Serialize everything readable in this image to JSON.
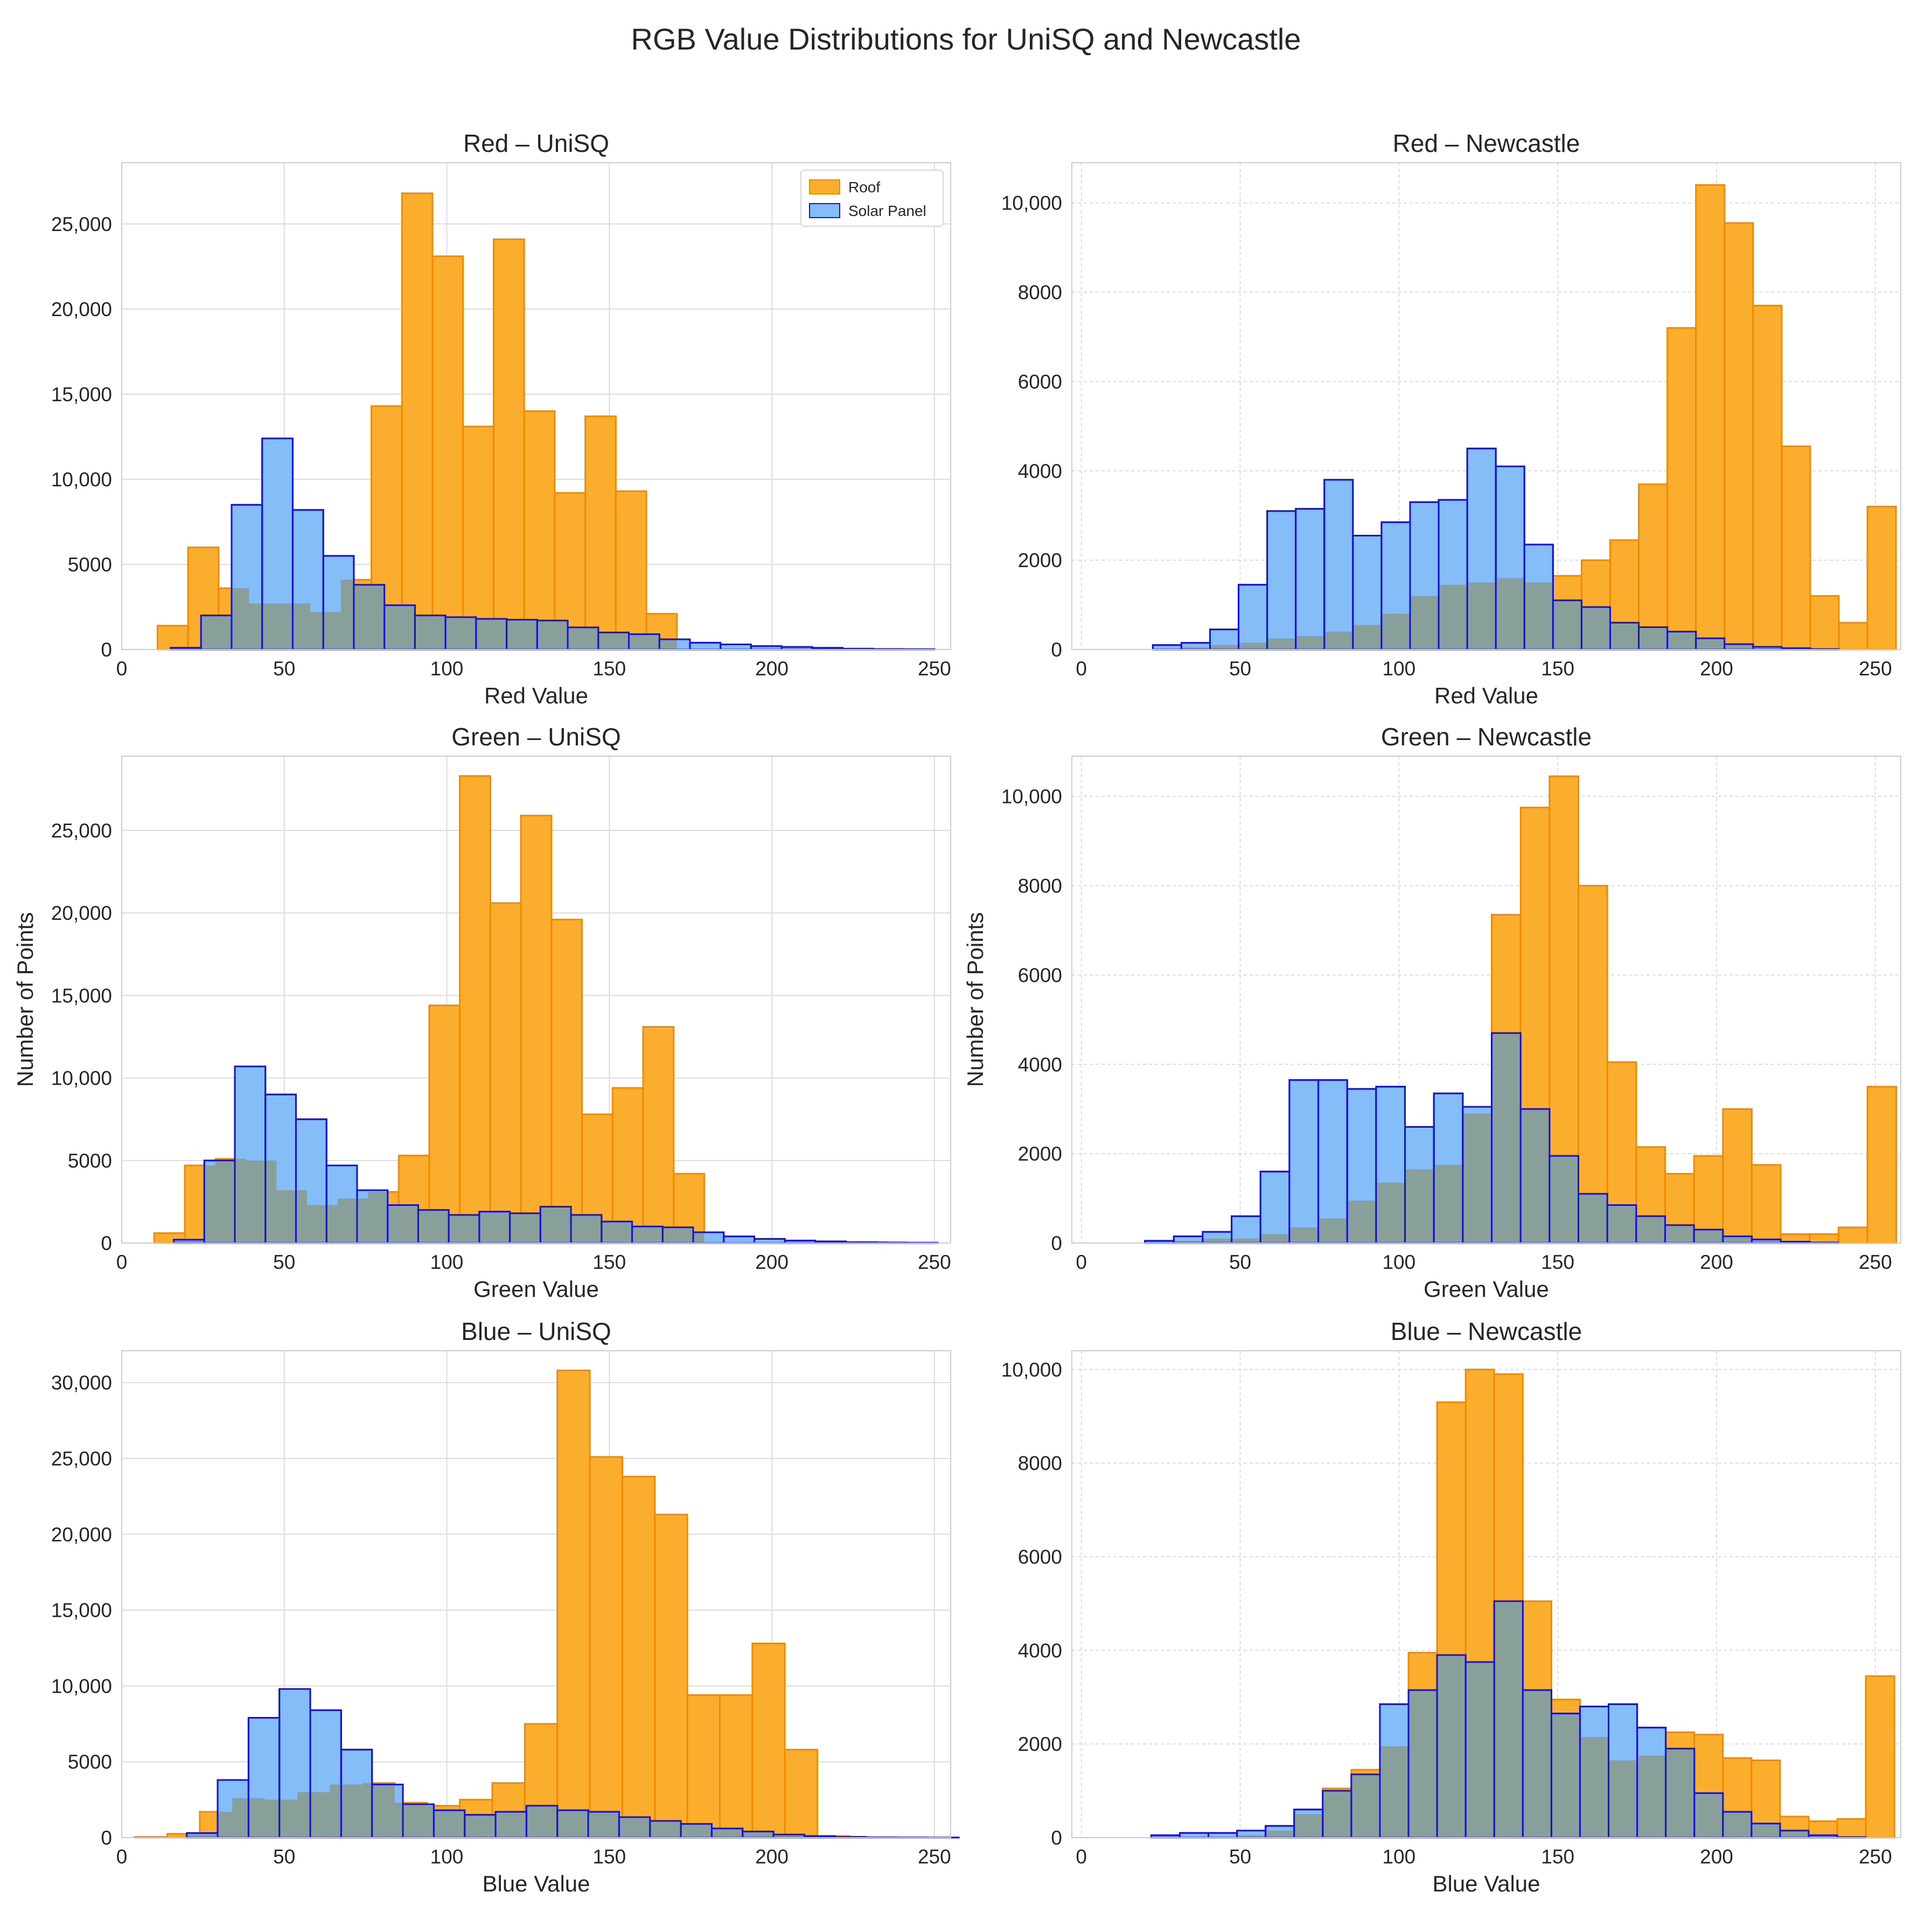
{
  "figure_title": "RGB Value Distributions for UniSQ and Newcastle",
  "colors": {
    "roof_fill": "#fbad2e",
    "roof_edge": "#f28a00",
    "solar_fill": "#85bdf9",
    "solar_edge": "#1414d6",
    "overlap_fill": "#899f99",
    "grid": "#dcdcdc",
    "frame": "#cccccc"
  },
  "chart_data": [
    {
      "type": "bar",
      "title": "Red – UniSQ",
      "xlabel": "Red Value",
      "ylabel": "",
      "xlim": [
        0,
        255
      ],
      "ylim": [
        0,
        28600
      ],
      "xticks": [
        0,
        50,
        100,
        150,
        200,
        250
      ],
      "yticks": [
        0,
        5000,
        10000,
        15000,
        20000,
        25000
      ],
      "ytick_labels": [
        "0",
        "5000",
        "10,000",
        "15,000",
        "20,000",
        "25,000"
      ],
      "grid": "solid",
      "legend": "top-right",
      "series": [
        {
          "name": "Roof",
          "bin_start": 11,
          "bin_width": 9.4,
          "values": [
            1400,
            6000,
            3600,
            2700,
            2700,
            2200,
            4100,
            14300,
            26800,
            23100,
            13100,
            24100,
            14000,
            9200,
            13700,
            9300,
            2100,
            0,
            0,
            0,
            0,
            0,
            0,
            0,
            0
          ]
        },
        {
          "name": "Solar Panel",
          "bin_start": 15,
          "bin_width": 9.4,
          "values": [
            100,
            2000,
            8500,
            12400,
            8200,
            5500,
            3800,
            2600,
            2000,
            1900,
            1800,
            1750,
            1700,
            1300,
            1000,
            900,
            600,
            400,
            300,
            200,
            150,
            100,
            50,
            30,
            20
          ]
        }
      ]
    },
    {
      "type": "bar",
      "title": "Red – Newcastle",
      "xlabel": "Red Value",
      "ylabel": "",
      "xlim": [
        -3,
        258
      ],
      "ylim": [
        0,
        10900
      ],
      "xticks": [
        0,
        50,
        100,
        150,
        200,
        250
      ],
      "yticks": [
        0,
        2000,
        4000,
        6000,
        8000,
        10000
      ],
      "ytick_labels": [
        "0",
        "2000",
        "4000",
        "6000",
        "8000",
        "10,000"
      ],
      "grid": "dashed",
      "legend": "",
      "series": [
        {
          "name": "Roof",
          "bin_start": 22.5,
          "bin_width": 9.0,
          "values": [
            0,
            50,
            100,
            150,
            250,
            300,
            400,
            550,
            800,
            1200,
            1450,
            1500,
            1600,
            1500,
            1650,
            2000,
            2450,
            3700,
            7200,
            10400,
            9550,
            7700,
            4550,
            1200,
            600,
            3200
          ]
        },
        {
          "name": "Solar Panel",
          "bin_start": 22.5,
          "bin_width": 9.0,
          "values": [
            100,
            150,
            450,
            1450,
            3100,
            3150,
            3800,
            2550,
            2850,
            3300,
            3350,
            4500,
            4100,
            2350,
            1100,
            950,
            600,
            500,
            400,
            250,
            120,
            60,
            30,
            10,
            0,
            0
          ]
        }
      ]
    },
    {
      "type": "bar",
      "title": "Green – UniSQ",
      "xlabel": "Green Value",
      "ylabel": "Number of Points",
      "xlim": [
        0,
        255
      ],
      "ylim": [
        0,
        29500
      ],
      "xticks": [
        0,
        50,
        100,
        150,
        200,
        250
      ],
      "yticks": [
        0,
        5000,
        10000,
        15000,
        20000,
        25000
      ],
      "ytick_labels": [
        "0",
        "5000",
        "10,000",
        "15,000",
        "20,000",
        "25,000"
      ],
      "grid": "solid",
      "legend": "",
      "series": [
        {
          "name": "Roof",
          "bin_start": 10,
          "bin_width": 9.4,
          "values": [
            600,
            4700,
            5100,
            5000,
            3200,
            2300,
            2700,
            3100,
            5300,
            14400,
            28300,
            20600,
            25900,
            19600,
            7800,
            9400,
            13100,
            4200,
            0,
            0,
            0,
            0,
            0,
            50,
            0
          ]
        },
        {
          "name": "Solar Panel",
          "bin_start": 16,
          "bin_width": 9.4,
          "values": [
            200,
            5000,
            10700,
            9000,
            7500,
            4700,
            3200,
            2300,
            2000,
            1700,
            1900,
            1800,
            2200,
            1700,
            1300,
            1000,
            950,
            650,
            400,
            250,
            150,
            100,
            50,
            30,
            20
          ]
        }
      ]
    },
    {
      "type": "bar",
      "title": "Green – Newcastle",
      "xlabel": "Green Value",
      "ylabel": "Number of Points",
      "xlim": [
        -3,
        258
      ],
      "ylim": [
        0,
        10900
      ],
      "xticks": [
        0,
        50,
        100,
        150,
        200,
        250
      ],
      "yticks": [
        0,
        2000,
        4000,
        6000,
        8000,
        10000
      ],
      "ytick_labels": [
        "0",
        "2000",
        "4000",
        "6000",
        "8000",
        "10,000"
      ],
      "grid": "dashed",
      "legend": "",
      "series": [
        {
          "name": "Roof",
          "bin_start": 20,
          "bin_width": 9.1,
          "values": [
            0,
            50,
            100,
            100,
            200,
            350,
            550,
            950,
            1350,
            1650,
            1750,
            2900,
            7350,
            9750,
            10450,
            8000,
            4050,
            2150,
            1550,
            1950,
            3000,
            1750,
            200,
            200,
            350,
            3500
          ]
        },
        {
          "name": "Solar Panel",
          "bin_start": 20,
          "bin_width": 9.1,
          "values": [
            50,
            150,
            250,
            600,
            1600,
            3650,
            3650,
            3450,
            3500,
            2600,
            3350,
            3050,
            4700,
            3000,
            1950,
            1100,
            850,
            600,
            400,
            300,
            150,
            80,
            30,
            10,
            0,
            0
          ]
        }
      ]
    },
    {
      "type": "bar",
      "title": "Blue – UniSQ",
      "xlabel": "Blue Value",
      "ylabel": "",
      "xlim": [
        0,
        255
      ],
      "ylim": [
        0,
        32100
      ],
      "xticks": [
        0,
        50,
        100,
        150,
        200,
        250
      ],
      "yticks": [
        0,
        5000,
        10000,
        15000,
        20000,
        25000,
        30000
      ],
      "ytick_labels": [
        "0",
        "5000",
        "10,000",
        "15,000",
        "20,000",
        "25,000",
        "30,000"
      ],
      "grid": "solid",
      "legend": "",
      "series": [
        {
          "name": "Roof",
          "bin_start": 4,
          "bin_width": 10.0,
          "values": [
            50,
            250,
            1700,
            2600,
            2500,
            3000,
            3500,
            3600,
            2300,
            2100,
            2500,
            3600,
            7500,
            30800,
            25100,
            23800,
            21300,
            9400,
            9400,
            12800,
            5800,
            100,
            0,
            0,
            0
          ]
        },
        {
          "name": "Solar Panel",
          "bin_start": 20,
          "bin_width": 9.5,
          "values": [
            300,
            3800,
            7900,
            9800,
            8400,
            5800,
            3500,
            2200,
            1800,
            1500,
            1700,
            2100,
            1800,
            1700,
            1350,
            1100,
            900,
            600,
            400,
            200,
            100,
            50,
            20,
            10,
            5
          ]
        }
      ]
    },
    {
      "type": "bar",
      "title": "Blue – Newcastle",
      "xlabel": "Blue Value",
      "ylabel": "",
      "xlim": [
        -3,
        258
      ],
      "ylim": [
        0,
        10400
      ],
      "xticks": [
        0,
        50,
        100,
        150,
        200,
        250
      ],
      "yticks": [
        0,
        2000,
        4000,
        6000,
        8000,
        10000
      ],
      "ytick_labels": [
        "0",
        "2000",
        "4000",
        "6000",
        "8000",
        "10,000"
      ],
      "grid": "dashed",
      "legend": "",
      "series": [
        {
          "name": "Roof",
          "bin_start": 22,
          "bin_width": 9.0,
          "values": [
            0,
            0,
            0,
            50,
            150,
            500,
            1050,
            1450,
            1950,
            3950,
            9300,
            10000,
            9900,
            5050,
            2950,
            2150,
            1650,
            1750,
            2250,
            2200,
            1700,
            1650,
            450,
            350,
            400,
            3450
          ]
        },
        {
          "name": "Solar Panel",
          "bin_start": 22,
          "bin_width": 9.0,
          "values": [
            50,
            100,
            100,
            150,
            250,
            600,
            1000,
            1350,
            2850,
            3150,
            3900,
            3750,
            5050,
            3150,
            2650,
            2800,
            2850,
            2350,
            1900,
            950,
            550,
            300,
            150,
            50,
            10,
            0
          ]
        }
      ]
    }
  ],
  "legend": {
    "roof_label": "Roof",
    "solar_label": "Solar Panel"
  }
}
